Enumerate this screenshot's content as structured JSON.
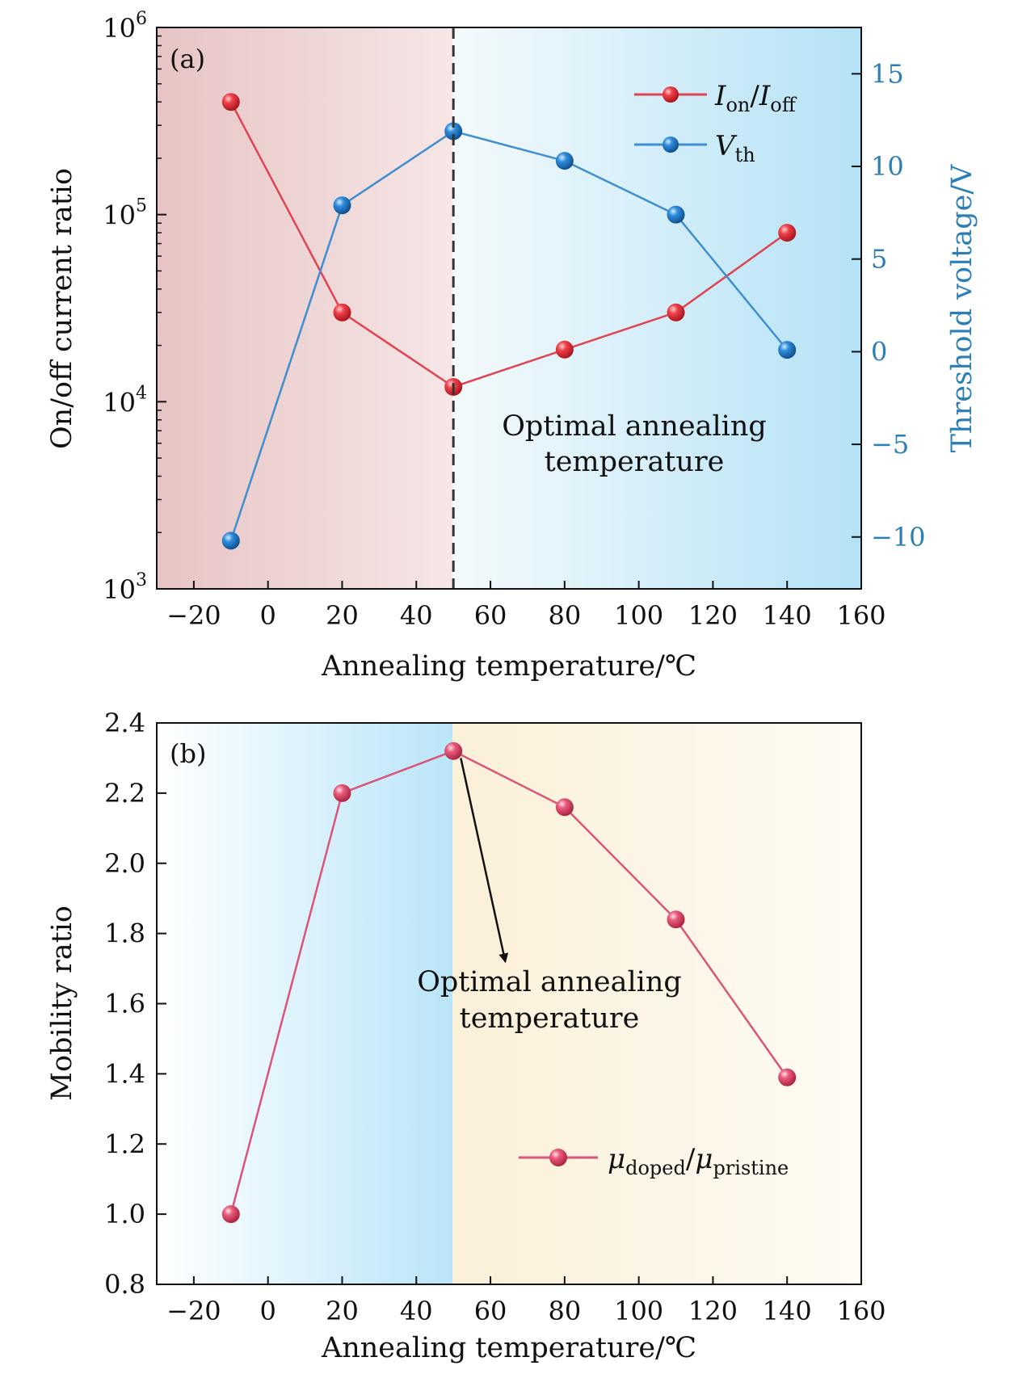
{
  "chart_data": [
    {
      "panel": "(a)",
      "type": "line",
      "xlabel": "Annealing temperature/℃",
      "xlim": [
        -30,
        160
      ],
      "xticks": [
        -20,
        0,
        20,
        40,
        60,
        80,
        100,
        120,
        140,
        160
      ],
      "xtick_labels": [
        "−20",
        "0",
        "20",
        "40",
        "60",
        "80",
        "100",
        "120",
        "140",
        "160"
      ],
      "ylabel": "On/off current ratio",
      "yscale": "log",
      "ylim": [
        1000,
        1000000
      ],
      "yticks": [
        {
          "base": "10",
          "exp": "3"
        },
        {
          "base": "10",
          "exp": "4"
        },
        {
          "base": "10",
          "exp": "5"
        },
        {
          "base": "10",
          "exp": "6"
        }
      ],
      "y2label": "Threshold voltage/V",
      "y2lim": [
        -12.8,
        17.5
      ],
      "y2ticks": [
        15,
        10,
        5,
        0,
        -5,
        -10
      ],
      "y2tick_labels": [
        "15",
        "10",
        "5",
        "0",
        "−5",
        "−10"
      ],
      "vline_x": 50,
      "annotation": [
        "Optimal annealing",
        "temperature"
      ],
      "background": {
        "left_color": "#e9c6c6",
        "right_color": "#b8e4f6",
        "split_x": 50
      },
      "legend_position": "top-right",
      "series": [
        {
          "legend": {
            "main": "I",
            "sub1": "on",
            "slash": "/",
            "main2": "I",
            "sub2": "off"
          },
          "axis": "left",
          "color": "#e02a35",
          "line_color": "#e04452",
          "x": [
            -10,
            20,
            50,
            80,
            110,
            140
          ],
          "y": [
            400000,
            30000,
            12000,
            19000,
            30000,
            80000
          ]
        },
        {
          "legend": {
            "main": "V",
            "sub1": "th"
          },
          "axis": "right",
          "color": "#1f7fcf",
          "line_color": "#3f8fd0",
          "x": [
            -10,
            20,
            50,
            80,
            110,
            140
          ],
          "y": [
            -10.2,
            7.9,
            11.9,
            10.3,
            7.4,
            0.1
          ]
        }
      ]
    },
    {
      "panel": "(b)",
      "type": "line",
      "xlabel": "Annealing temperature/℃",
      "xlim": [
        -30,
        160
      ],
      "xticks": [
        -20,
        0,
        20,
        40,
        60,
        80,
        100,
        120,
        140,
        160
      ],
      "xtick_labels": [
        "−20",
        "0",
        "20",
        "40",
        "60",
        "80",
        "100",
        "120",
        "140",
        "160"
      ],
      "ylabel": "Mobility ratio",
      "ylim": [
        0.8,
        2.4
      ],
      "yticks": [
        0.8,
        1.0,
        1.2,
        1.4,
        1.6,
        1.8,
        2.0,
        2.2,
        2.4
      ],
      "ytick_labels": [
        "0.8",
        "1.0",
        "1.2",
        "1.4",
        "1.6",
        "1.8",
        "2.0",
        "2.2",
        "2.4"
      ],
      "annotation": [
        "Optimal annealing",
        "temperature"
      ],
      "arrow": {
        "from": [
          52,
          2.3
        ],
        "to": [
          64,
          1.72
        ]
      },
      "background": {
        "left_color": "#bfe6f8",
        "right_color": "#fbf1dd",
        "split_x": 50
      },
      "legend_position": "lower-right",
      "series": [
        {
          "legend": {
            "main": "μ",
            "sub1": "doped",
            "slash": "/",
            "main2": "μ",
            "sub2": "pristine"
          },
          "color": "#e4486c",
          "line_color": "#d9557a",
          "x": [
            -10,
            20,
            50,
            80,
            110,
            140
          ],
          "y": [
            1.0,
            2.2,
            2.32,
            2.16,
            1.84,
            1.39
          ]
        }
      ]
    }
  ]
}
